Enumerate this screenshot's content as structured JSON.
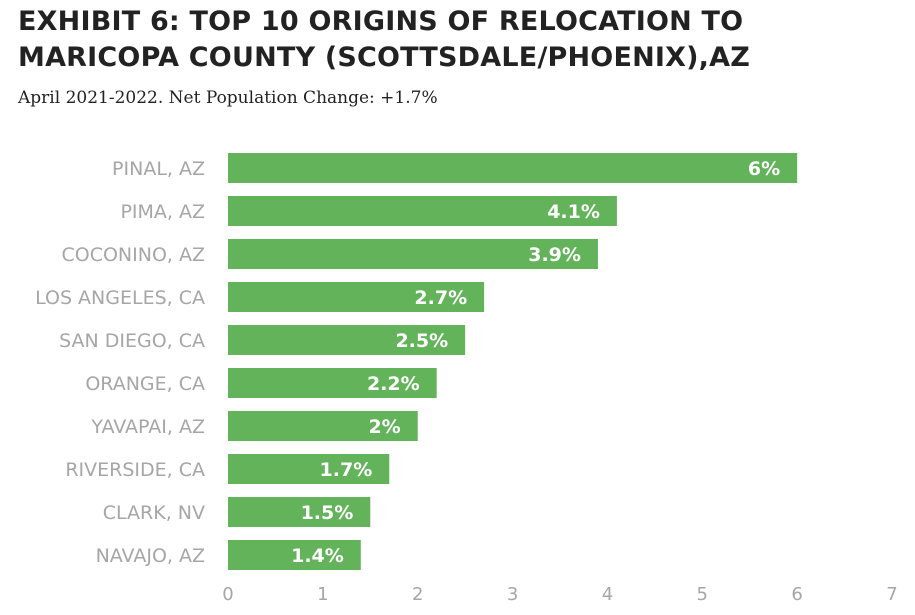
{
  "colors": {
    "bar": "#63b35b",
    "axis_text": "#a6a6a6",
    "title": "#222222"
  },
  "chart_data": {
    "type": "bar",
    "orientation": "horizontal",
    "title": "EXHIBIT 6: TOP 10 ORIGINS OF RELOCATION TO MARICOPA COUNTY (SCOTTSDALE/PHOENIX),AZ",
    "subtitle": "April 2021-2022. Net Population Change: +1.7%",
    "categories": [
      "PINAL, AZ",
      "PIMA, AZ",
      "COCONINO, AZ",
      "LOS ANGELES, CA",
      "SAN DIEGO, CA",
      "ORANGE, CA",
      "YAVAPAI, AZ",
      "RIVERSIDE, CA",
      "CLARK, NV",
      "NAVAJO, AZ"
    ],
    "values": [
      6,
      4.1,
      3.9,
      2.7,
      2.5,
      2.2,
      2,
      1.7,
      1.5,
      1.4
    ],
    "data_labels": [
      "6%",
      "4.1%",
      "3.9%",
      "2.7%",
      "2.5%",
      "2.2%",
      "2%",
      "1.7%",
      "1.5%",
      "1.4%"
    ],
    "xlim": [
      0,
      7
    ],
    "xticks": [
      "0",
      "1",
      "2",
      "3",
      "4",
      "5",
      "6",
      "7"
    ],
    "xlabel": "",
    "ylabel": "",
    "grid": false,
    "legend": "none"
  }
}
